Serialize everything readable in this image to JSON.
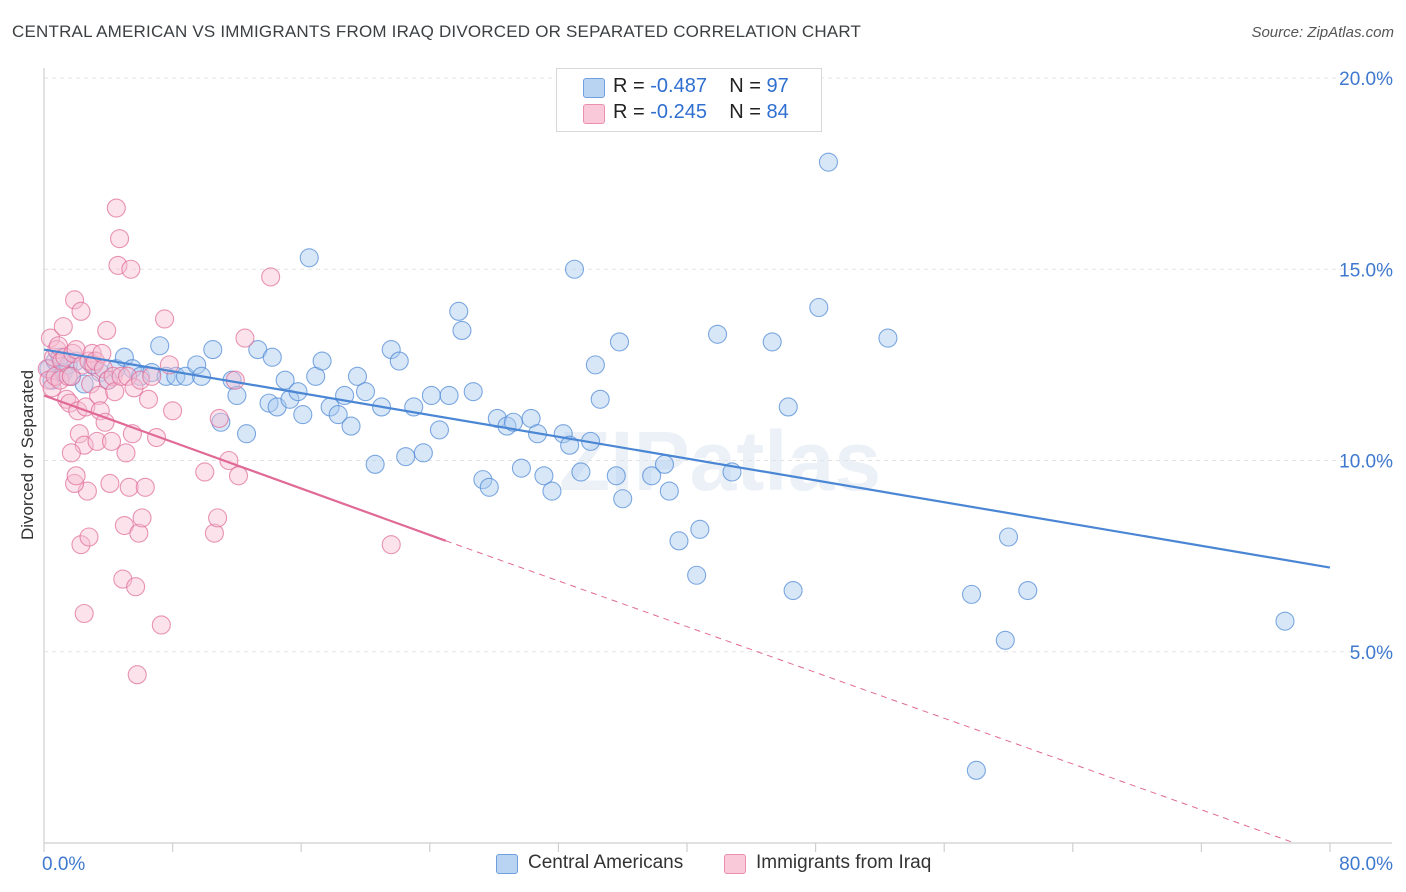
{
  "title": "CENTRAL AMERICAN VS IMMIGRANTS FROM IRAQ DIVORCED OR SEPARATED CORRELATION CHART",
  "source": "Source: ZipAtlas.com",
  "watermark": "ZIPatlas",
  "legend": {
    "rows": [
      {
        "r_label": "R = ",
        "r_value": "-0.487",
        "n_label": "N = ",
        "n_value": "97",
        "color": "#8fb8ea"
      },
      {
        "r_label": "R = ",
        "r_value": "-0.245",
        "n_label": "N = ",
        "n_value": "84",
        "color": "#f4a4bf"
      }
    ]
  },
  "bottom_legend": [
    {
      "label": "Central Americans",
      "color": "#8fb8ea"
    },
    {
      "label": "Immigrants from Iraq",
      "color": "#f4a4bf"
    }
  ],
  "chart_data": {
    "type": "scatter",
    "title": "CENTRAL AMERICAN VS IMMIGRANTS FROM IRAQ DIVORCED OR SEPARATED CORRELATION CHART",
    "xlabel": "",
    "ylabel": "Divorced or Separated",
    "xlim": [
      0,
      80
    ],
    "ylim": [
      0,
      20
    ],
    "x_ticks": [
      0,
      80
    ],
    "x_tick_labels": [
      "0.0%",
      "80.0%"
    ],
    "y_ticks": [
      5,
      10,
      15,
      20
    ],
    "y_tick_labels": [
      "5.0%",
      "10.0%",
      "15.0%",
      "20.0%"
    ],
    "grid": true,
    "legend_position": "top-center",
    "series": [
      {
        "name": "Central Americans",
        "color": "#4a86d4",
        "fill": "#a9c9ef",
        "r": -0.487,
        "n": 97,
        "trend": {
          "x": [
            0,
            80
          ],
          "y": [
            12.9,
            7.2
          ],
          "dashed_from": null
        },
        "points": [
          [
            0.3,
            12.4
          ],
          [
            0.5,
            12.1
          ],
          [
            0.7,
            12.6
          ],
          [
            1.0,
            12.7
          ],
          [
            1.2,
            12.3
          ],
          [
            1.5,
            12.5
          ],
          [
            1.7,
            12.2
          ],
          [
            2.0,
            12.6
          ],
          [
            2.5,
            12.0
          ],
          [
            3.0,
            12.5
          ],
          [
            3.5,
            12.3
          ],
          [
            4.0,
            12.1
          ],
          [
            4.5,
            12.4
          ],
          [
            5.0,
            12.7
          ],
          [
            5.5,
            12.4
          ],
          [
            6.0,
            12.2
          ],
          [
            6.7,
            12.3
          ],
          [
            7.2,
            13.0
          ],
          [
            7.6,
            12.2
          ],
          [
            8.2,
            12.2
          ],
          [
            8.8,
            12.2
          ],
          [
            9.5,
            12.5
          ],
          [
            9.8,
            12.2
          ],
          [
            10.5,
            12.9
          ],
          [
            11.0,
            11.0
          ],
          [
            11.7,
            12.1
          ],
          [
            12.0,
            11.7
          ],
          [
            12.6,
            10.7
          ],
          [
            13.3,
            12.9
          ],
          [
            14.2,
            12.7
          ],
          [
            14.0,
            11.5
          ],
          [
            14.5,
            11.4
          ],
          [
            15.0,
            12.1
          ],
          [
            15.3,
            11.6
          ],
          [
            15.8,
            11.8
          ],
          [
            16.1,
            11.2
          ],
          [
            16.5,
            15.3
          ],
          [
            16.9,
            12.2
          ],
          [
            17.3,
            12.6
          ],
          [
            17.8,
            11.4
          ],
          [
            18.3,
            11.2
          ],
          [
            18.7,
            11.7
          ],
          [
            19.1,
            10.9
          ],
          [
            19.5,
            12.2
          ],
          [
            20.0,
            11.8
          ],
          [
            20.6,
            9.9
          ],
          [
            21.0,
            11.4
          ],
          [
            21.6,
            12.9
          ],
          [
            22.1,
            12.6
          ],
          [
            22.5,
            10.1
          ],
          [
            23.0,
            11.4
          ],
          [
            23.6,
            10.2
          ],
          [
            24.1,
            11.7
          ],
          [
            24.6,
            10.8
          ],
          [
            25.2,
            11.7
          ],
          [
            25.8,
            13.9
          ],
          [
            26.0,
            13.4
          ],
          [
            26.7,
            11.8
          ],
          [
            27.3,
            9.5
          ],
          [
            27.7,
            9.3
          ],
          [
            28.2,
            11.1
          ],
          [
            28.8,
            10.9
          ],
          [
            29.2,
            11.0
          ],
          [
            29.7,
            9.8
          ],
          [
            30.3,
            11.1
          ],
          [
            30.7,
            10.7
          ],
          [
            31.1,
            9.6
          ],
          [
            31.6,
            9.2
          ],
          [
            32.3,
            10.7
          ],
          [
            32.7,
            10.4
          ],
          [
            33.0,
            15.0
          ],
          [
            33.4,
            9.7
          ],
          [
            34.0,
            10.5
          ],
          [
            34.3,
            12.5
          ],
          [
            34.6,
            11.6
          ],
          [
            35.6,
            9.6
          ],
          [
            35.8,
            13.1
          ],
          [
            36.0,
            9.0
          ],
          [
            37.8,
            9.6
          ],
          [
            38.6,
            9.9
          ],
          [
            38.9,
            9.2
          ],
          [
            39.5,
            7.9
          ],
          [
            40.6,
            7.0
          ],
          [
            40.8,
            8.2
          ],
          [
            41.9,
            13.3
          ],
          [
            42.8,
            9.7
          ],
          [
            45.3,
            13.1
          ],
          [
            46.3,
            11.4
          ],
          [
            46.6,
            6.6
          ],
          [
            48.2,
            14.0
          ],
          [
            48.8,
            17.8
          ],
          [
            52.5,
            13.2
          ],
          [
            57.7,
            6.5
          ],
          [
            59.8,
            5.3
          ],
          [
            60.0,
            8.0
          ],
          [
            61.2,
            6.6
          ],
          [
            58.0,
            1.9
          ],
          [
            77.2,
            5.8
          ]
        ]
      },
      {
        "name": "Immigrants from Iraq",
        "color": "#e06a95",
        "fill": "#f7bfd2",
        "r": -0.245,
        "n": 84,
        "trend": {
          "x": [
            0,
            25,
            77.8
          ],
          "y": [
            11.7,
            7.9,
            0.0
          ],
          "dashed_from": 25
        },
        "points": [
          [
            0.2,
            12.4
          ],
          [
            0.3,
            12.1
          ],
          [
            0.4,
            13.2
          ],
          [
            0.5,
            11.9
          ],
          [
            0.6,
            12.7
          ],
          [
            0.7,
            12.2
          ],
          [
            0.8,
            12.9
          ],
          [
            0.9,
            13.0
          ],
          [
            1.0,
            12.1
          ],
          [
            1.1,
            12.6
          ],
          [
            1.2,
            13.5
          ],
          [
            1.3,
            12.7
          ],
          [
            1.4,
            11.6
          ],
          [
            1.5,
            12.2
          ],
          [
            1.6,
            11.5
          ],
          [
            1.7,
            12.2
          ],
          [
            1.8,
            12.8
          ],
          [
            1.9,
            14.2
          ],
          [
            2.0,
            12.9
          ],
          [
            2.1,
            11.3
          ],
          [
            2.2,
            10.7
          ],
          [
            2.3,
            13.9
          ],
          [
            2.4,
            12.5
          ],
          [
            2.5,
            10.4
          ],
          [
            2.6,
            11.4
          ],
          [
            2.7,
            9.2
          ],
          [
            2.8,
            12.6
          ],
          [
            2.9,
            12.0
          ],
          [
            3.0,
            12.8
          ],
          [
            3.1,
            12.5
          ],
          [
            3.2,
            12.6
          ],
          [
            3.3,
            10.5
          ],
          [
            3.4,
            11.7
          ],
          [
            3.5,
            11.3
          ],
          [
            3.6,
            12.8
          ],
          [
            3.7,
            12.4
          ],
          [
            3.8,
            11.0
          ],
          [
            3.9,
            13.4
          ],
          [
            4.0,
            12.1
          ],
          [
            4.1,
            9.4
          ],
          [
            4.2,
            10.5
          ],
          [
            4.3,
            12.2
          ],
          [
            4.4,
            11.8
          ],
          [
            4.5,
            16.6
          ],
          [
            4.6,
            15.1
          ],
          [
            4.7,
            15.8
          ],
          [
            4.8,
            12.2
          ],
          [
            4.9,
            6.9
          ],
          [
            5.0,
            8.3
          ],
          [
            5.1,
            10.2
          ],
          [
            5.2,
            12.2
          ],
          [
            5.3,
            9.3
          ],
          [
            5.4,
            15.0
          ],
          [
            5.5,
            10.7
          ],
          [
            5.6,
            11.9
          ],
          [
            5.7,
            6.7
          ],
          [
            5.8,
            4.4
          ],
          [
            5.9,
            8.1
          ],
          [
            6.0,
            12.1
          ],
          [
            6.1,
            8.5
          ],
          [
            6.3,
            9.3
          ],
          [
            6.5,
            11.6
          ],
          [
            6.7,
            12.2
          ],
          [
            7.0,
            10.6
          ],
          [
            7.3,
            5.7
          ],
          [
            7.5,
            13.7
          ],
          [
            7.8,
            12.5
          ],
          [
            8.0,
            11.3
          ],
          [
            10.0,
            9.7
          ],
          [
            10.6,
            8.1
          ],
          [
            10.8,
            8.5
          ],
          [
            10.9,
            11.1
          ],
          [
            11.5,
            10.0
          ],
          [
            11.9,
            12.1
          ],
          [
            12.1,
            9.6
          ],
          [
            12.5,
            13.2
          ],
          [
            14.1,
            14.8
          ],
          [
            21.6,
            7.8
          ],
          [
            1.9,
            9.4
          ],
          [
            2.0,
            9.6
          ],
          [
            2.3,
            7.8
          ],
          [
            2.5,
            6.0
          ],
          [
            2.8,
            8.0
          ],
          [
            1.7,
            10.2
          ]
        ]
      }
    ]
  }
}
